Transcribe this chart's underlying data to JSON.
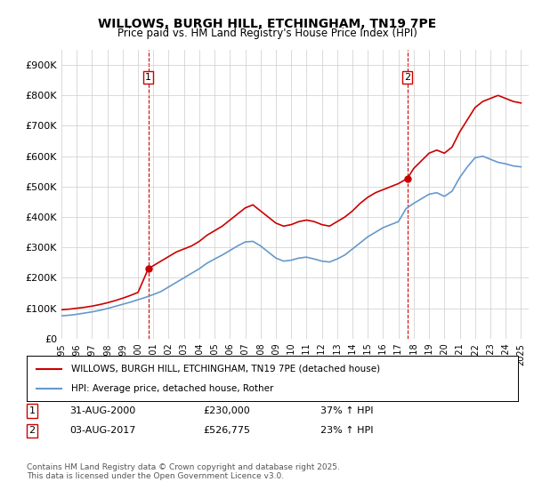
{
  "title": "WILLOWS, BURGH HILL, ETCHINGHAM, TN19 7PE",
  "subtitle": "Price paid vs. HM Land Registry's House Price Index (HPI)",
  "footnote": "Contains HM Land Registry data © Crown copyright and database right 2025.\nThis data is licensed under the Open Government Licence v3.0.",
  "legend_line1": "WILLOWS, BURGH HILL, ETCHINGHAM, TN19 7PE (detached house)",
  "legend_line2": "HPI: Average price, detached house, Rother",
  "marker1_label": "1",
  "marker1_date": "31-AUG-2000",
  "marker1_price": "£230,000",
  "marker1_hpi": "37% ↑ HPI",
  "marker2_label": "2",
  "marker2_date": "03-AUG-2017",
  "marker2_price": "£526,775",
  "marker2_hpi": "23% ↑ HPI",
  "marker1_x": 2000.67,
  "marker2_x": 2017.58,
  "red_color": "#cc0000",
  "blue_color": "#6699cc",
  "grid_color": "#cccccc",
  "background_color": "#ffffff",
  "ylim": [
    0,
    950000
  ],
  "xlim_start": 1995.0,
  "xlim_end": 2025.5,
  "yticks": [
    0,
    100000,
    200000,
    300000,
    400000,
    500000,
    600000,
    700000,
    800000,
    900000
  ],
  "ytick_labels": [
    "£0",
    "£100K",
    "£200K",
    "£300K",
    "£400K",
    "£500K",
    "£600K",
    "£700K",
    "£800K",
    "£900K"
  ],
  "xtick_years": [
    1995,
    1996,
    1997,
    1998,
    1999,
    2000,
    2001,
    2002,
    2003,
    2004,
    2005,
    2006,
    2007,
    2008,
    2009,
    2010,
    2011,
    2012,
    2013,
    2014,
    2015,
    2016,
    2017,
    2018,
    2019,
    2020,
    2021,
    2022,
    2023,
    2024,
    2025
  ],
  "red_x": [
    1995.0,
    1995.5,
    1996.0,
    1996.5,
    1997.0,
    1997.5,
    1998.0,
    1998.5,
    1999.0,
    1999.5,
    2000.0,
    2000.67,
    2001.0,
    2001.5,
    2002.0,
    2002.5,
    2003.0,
    2003.5,
    2004.0,
    2004.5,
    2005.0,
    2005.5,
    2006.0,
    2006.5,
    2007.0,
    2007.5,
    2008.0,
    2008.5,
    2009.0,
    2009.5,
    2010.0,
    2010.5,
    2011.0,
    2011.5,
    2012.0,
    2012.5,
    2013.0,
    2013.5,
    2014.0,
    2014.5,
    2015.0,
    2015.5,
    2016.0,
    2016.5,
    2017.0,
    2017.58,
    2018.0,
    2018.5,
    2019.0,
    2019.5,
    2020.0,
    2020.5,
    2021.0,
    2021.5,
    2022.0,
    2022.5,
    2023.0,
    2023.5,
    2024.0,
    2024.5,
    2025.0
  ],
  "red_y": [
    95000,
    97000,
    100000,
    103000,
    107000,
    112000,
    118000,
    125000,
    133000,
    142000,
    152000,
    230000,
    240000,
    255000,
    270000,
    285000,
    295000,
    305000,
    320000,
    340000,
    355000,
    370000,
    390000,
    410000,
    430000,
    440000,
    420000,
    400000,
    380000,
    370000,
    375000,
    385000,
    390000,
    385000,
    375000,
    370000,
    385000,
    400000,
    420000,
    445000,
    465000,
    480000,
    490000,
    500000,
    510000,
    526775,
    560000,
    585000,
    610000,
    620000,
    610000,
    630000,
    680000,
    720000,
    760000,
    780000,
    790000,
    800000,
    790000,
    780000,
    775000
  ],
  "blue_x": [
    1995.0,
    1995.5,
    1996.0,
    1996.5,
    1997.0,
    1997.5,
    1998.0,
    1998.5,
    1999.0,
    1999.5,
    2000.0,
    2000.5,
    2001.0,
    2001.5,
    2002.0,
    2002.5,
    2003.0,
    2003.5,
    2004.0,
    2004.5,
    2005.0,
    2005.5,
    2006.0,
    2006.5,
    2007.0,
    2007.5,
    2008.0,
    2008.5,
    2009.0,
    2009.5,
    2010.0,
    2010.5,
    2011.0,
    2011.5,
    2012.0,
    2012.5,
    2013.0,
    2013.5,
    2014.0,
    2014.5,
    2015.0,
    2015.5,
    2016.0,
    2016.5,
    2017.0,
    2017.5,
    2018.0,
    2018.5,
    2019.0,
    2019.5,
    2020.0,
    2020.5,
    2021.0,
    2021.5,
    2022.0,
    2022.5,
    2023.0,
    2023.5,
    2024.0,
    2024.5,
    2025.0
  ],
  "blue_y": [
    75000,
    77000,
    80000,
    84000,
    88000,
    93000,
    99000,
    106000,
    113000,
    120000,
    128000,
    136000,
    145000,
    155000,
    170000,
    185000,
    200000,
    215000,
    230000,
    248000,
    262000,
    275000,
    290000,
    305000,
    318000,
    320000,
    305000,
    285000,
    265000,
    255000,
    258000,
    265000,
    268000,
    262000,
    255000,
    252000,
    262000,
    275000,
    295000,
    315000,
    335000,
    350000,
    365000,
    375000,
    385000,
    428000,
    445000,
    460000,
    475000,
    480000,
    468000,
    485000,
    530000,
    565000,
    595000,
    600000,
    590000,
    580000,
    575000,
    568000,
    565000
  ]
}
